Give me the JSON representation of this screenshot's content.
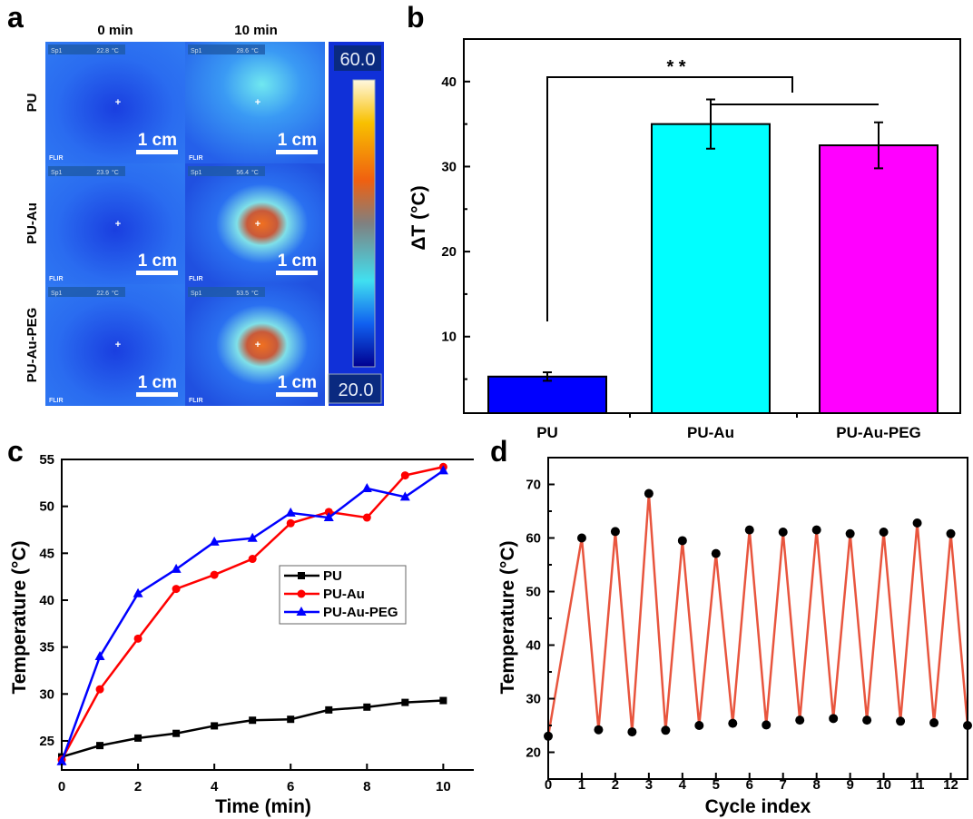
{
  "panel_labels": {
    "a": "a",
    "b": "b",
    "c": "c",
    "d": "d"
  },
  "panel_a": {
    "columns": [
      "0 min",
      "10 min"
    ],
    "rows": [
      "PU",
      "PU-Au",
      "PU-Au-PEG"
    ],
    "spot_label": "Sp1",
    "unit": "°C",
    "brand": "FLIR",
    "scale_bar": "1 cm",
    "readouts": [
      [
        "22.8",
        "28.6"
      ],
      [
        "23.9",
        "56.4"
      ],
      [
        "22.6",
        "53.5"
      ]
    ],
    "colorbar": {
      "max": "60.0",
      "min": "20.0"
    }
  },
  "chart_data": [
    {
      "panel": "b",
      "type": "bar",
      "categories": [
        "PU",
        "PU-Au",
        "PU-Au-PEG"
      ],
      "values": [
        5.3,
        35.0,
        32.5
      ],
      "errors": [
        0.5,
        2.9,
        2.7
      ],
      "colors": [
        "#0000ff",
        "#00ffff",
        "#ff00ff"
      ],
      "ylabel": "ΔT (°C)",
      "ylim": [
        1,
        45
      ],
      "yticks": [
        10,
        20,
        30,
        40
      ],
      "significance": "* *"
    },
    {
      "panel": "c",
      "type": "line",
      "x": [
        0,
        1,
        2,
        3,
        4,
        5,
        6,
        7,
        8,
        9,
        10
      ],
      "series": [
        {
          "name": "PU",
          "color": "#000000",
          "marker": "square",
          "values": [
            23.3,
            24.5,
            25.3,
            25.8,
            26.6,
            27.2,
            27.3,
            28.3,
            28.6,
            29.1,
            29.3
          ]
        },
        {
          "name": "PU-Au",
          "color": "#ff0000",
          "marker": "circle",
          "values": [
            23.0,
            30.5,
            35.9,
            41.2,
            42.7,
            44.4,
            48.2,
            49.4,
            48.8,
            53.3,
            54.2
          ]
        },
        {
          "name": "PU-Au-PEG",
          "color": "#0000ff",
          "marker": "triangle",
          "values": [
            22.8,
            34.0,
            40.7,
            43.3,
            46.2,
            46.6,
            49.3,
            48.8,
            51.9,
            51.0,
            53.8
          ]
        }
      ],
      "xlabel": "Time (min)",
      "ylabel": "Temperature (°C)",
      "xlim": [
        0,
        10.8
      ],
      "ylim": [
        21.9,
        55
      ],
      "xticks": [
        0,
        2,
        4,
        6,
        8,
        10
      ],
      "yticks": [
        25,
        30,
        35,
        40,
        45,
        50,
        55
      ],
      "legend": "center-right"
    },
    {
      "panel": "d",
      "type": "line",
      "x": [
        0,
        1,
        1.5,
        2,
        2.5,
        3,
        3.5,
        4,
        4.5,
        5,
        5.5,
        6,
        6.5,
        7,
        7.5,
        8,
        8.5,
        9,
        9.5,
        10,
        10.5,
        11,
        11.5,
        12,
        12.5
      ],
      "values": [
        23,
        60,
        24.2,
        61.2,
        23.8,
        68.3,
        24.1,
        59.5,
        25,
        57.1,
        25.4,
        61.5,
        25.1,
        61.1,
        26,
        61.5,
        26.3,
        60.8,
        26,
        61.1,
        25.8,
        62.8,
        25.5,
        60.8,
        25
      ],
      "line_color": "#e8553e",
      "marker_color": "#000000",
      "xlabel": "Cycle index",
      "ylabel": "Temperature (°C)",
      "xlim": [
        0,
        12.5
      ],
      "ylim": [
        15,
        75
      ],
      "xticks": [
        0,
        1,
        2,
        3,
        4,
        5,
        6,
        7,
        8,
        9,
        10,
        11,
        12
      ],
      "yticks": [
        20,
        30,
        40,
        50,
        60,
        70
      ]
    }
  ]
}
